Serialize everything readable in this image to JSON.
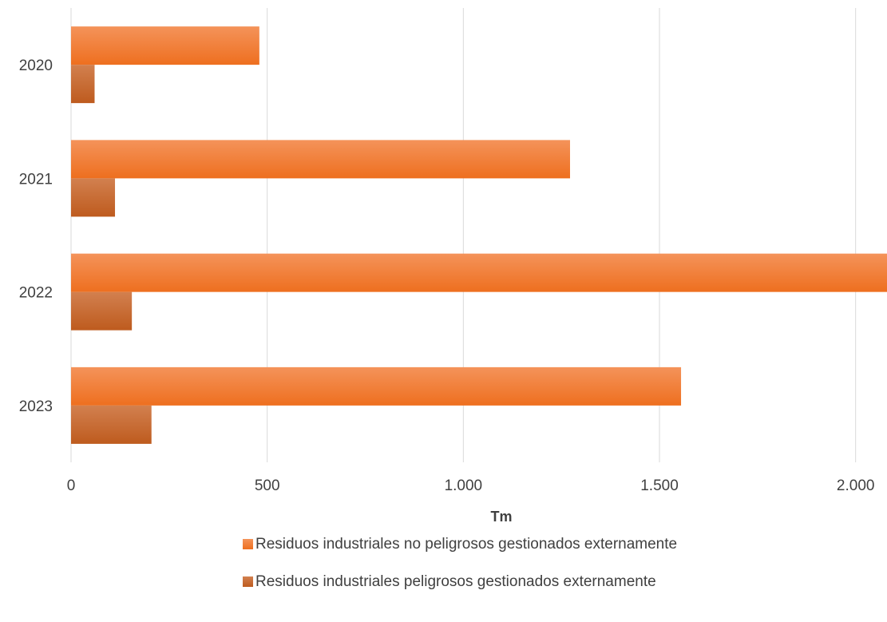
{
  "chart_data": {
    "type": "bar",
    "orientation": "horizontal",
    "categories": [
      "2020",
      "2021",
      "2022",
      "2023"
    ],
    "series": [
      {
        "name": "Residuos industriales no peligrosos gestionados externamente",
        "values": [
          480,
          1272,
          2080,
          1555
        ],
        "color": "#F07C2E"
      },
      {
        "name": "Residuos industriales peligrosos gestionados externamente",
        "values": [
          60,
          112,
          155,
          205
        ],
        "color": "#C8642A"
      }
    ],
    "xlabel": "Tm",
    "ylabel": "",
    "xlim": [
      0,
      2080
    ],
    "x_ticks": [
      0,
      500,
      1000,
      1500,
      2000
    ],
    "x_tick_labels": [
      "0",
      "500",
      "1.000",
      "1.500",
      "2.000"
    ],
    "grid": "vertical",
    "legend_position": "bottom"
  }
}
